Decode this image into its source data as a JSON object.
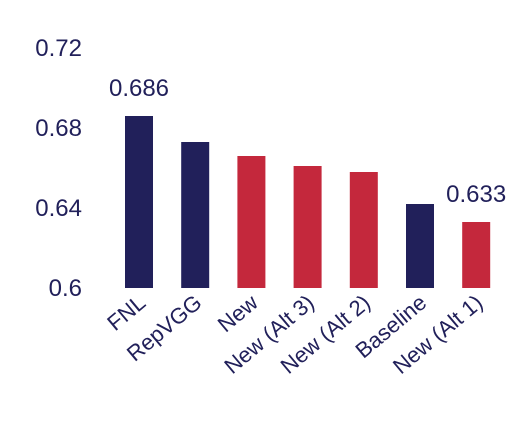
{
  "chart_data": {
    "type": "bar",
    "categories": [
      "FNL",
      "RepVGG",
      "New",
      "New (Alt 3)",
      "New (Alt 2)",
      "Baseline",
      "New (Alt 1)"
    ],
    "values": [
      0.686,
      0.673,
      0.666,
      0.661,
      0.658,
      0.642,
      0.633
    ],
    "bar_colors": [
      "#21205a",
      "#21205a",
      "#c4283c",
      "#c4283c",
      "#c4283c",
      "#21205a",
      "#c4283c"
    ],
    "data_labels": [
      {
        "index": 0,
        "text": "0.686"
      },
      {
        "index": 6,
        "text": "0.633"
      }
    ],
    "yticks": [
      {
        "value": 0.6,
        "label": "0.6"
      },
      {
        "value": 0.64,
        "label": "0.64"
      },
      {
        "value": 0.68,
        "label": "0.68"
      },
      {
        "value": 0.72,
        "label": "0.72"
      }
    ],
    "ylim": [
      0.6,
      0.72
    ],
    "title": "",
    "xlabel": "",
    "ylabel": "",
    "grid": false,
    "legend": "none",
    "text_color": "#21205a"
  }
}
